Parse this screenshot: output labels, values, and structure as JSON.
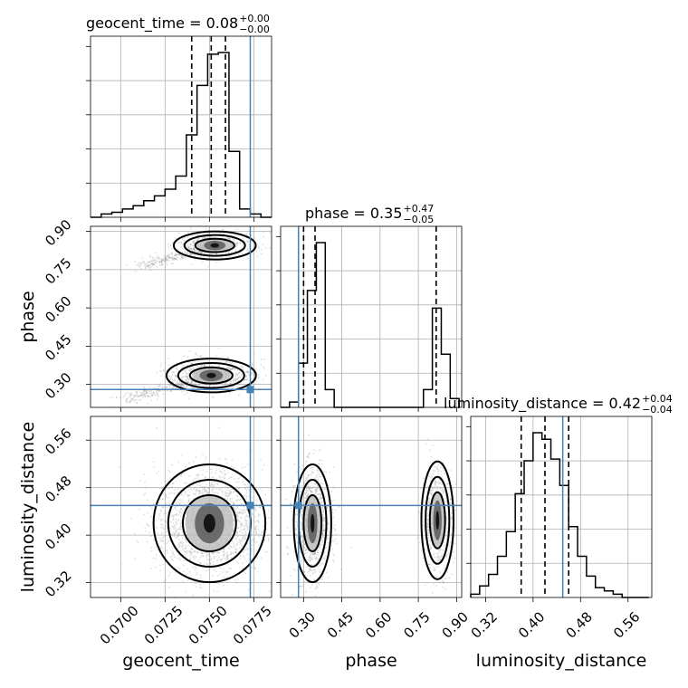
{
  "colors": {
    "truth": "#4682b4",
    "hist": "#000000",
    "points": "#808080",
    "grid": "#b0b0b0"
  },
  "chart_data": {
    "type": "corner",
    "parameters": [
      "geocent_time",
      "phase",
      "luminosity_distance"
    ],
    "truths": {
      "geocent_time": 0.0773,
      "phase": 0.28,
      "luminosity_distance": 0.45
    },
    "titles": {
      "geocent_time": {
        "name": "geocent_time",
        "value": "0.08",
        "plus": "+0.00",
        "minus": "−0.00"
      },
      "phase": {
        "name": "phase",
        "value": "0.35",
        "plus": "+0.47",
        "minus": "−0.05"
      },
      "luminosity_distance": {
        "name": "luminosity_distance",
        "value": "0.42",
        "plus": "+0.04",
        "minus": "−0.04"
      }
    },
    "axis_labels": {
      "geocent_time": "geocent_time",
      "phase": "phase",
      "luminosity_distance": "luminosity_distance"
    },
    "ranges": {
      "geocent_time": [
        0.0683,
        0.0785
      ],
      "phase": [
        0.21,
        0.92
      ],
      "luminosity_distance": [
        0.295,
        0.6
      ]
    },
    "ticks": {
      "geocent_time": [
        "0.0700",
        "0.0725",
        "0.0750",
        "0.0775"
      ],
      "phase": [
        "0.30",
        "0.45",
        "0.60",
        "0.75",
        "0.90"
      ],
      "luminosity_distance": [
        "0.32",
        "0.40",
        "0.48",
        "0.56"
      ]
    },
    "quantiles": {
      "geocent_time": [
        0.074,
        0.0751,
        0.0759
      ],
      "phase": [
        0.3,
        0.345,
        0.82
      ],
      "luminosity_distance": [
        0.38,
        0.42,
        0.46
      ]
    },
    "histograms": {
      "geocent_time": {
        "bin_edges": [
          0.0683,
          0.0689,
          0.0695,
          0.0701,
          0.0707,
          0.0713,
          0.0719,
          0.0725,
          0.0731,
          0.0737,
          0.0743,
          0.0749,
          0.0755,
          0.0761,
          0.0767,
          0.0773,
          0.0779,
          0.0785
        ],
        "counts": [
          0,
          2,
          3,
          5,
          7,
          10,
          13,
          17,
          25,
          50,
          80,
          99,
          100,
          40,
          5,
          2,
          0
        ]
      },
      "phase": {
        "bin_edges": [
          0.21,
          0.245,
          0.28,
          0.315,
          0.35,
          0.385,
          0.42,
          0.455,
          0.49,
          0.525,
          0.56,
          0.595,
          0.63,
          0.665,
          0.7,
          0.735,
          0.77,
          0.805,
          0.84,
          0.875,
          0.91
        ],
        "counts": [
          0,
          3,
          25,
          66,
          93,
          10,
          0,
          0,
          0,
          0,
          0,
          0,
          0,
          0,
          0,
          0,
          10,
          56,
          30,
          5
        ]
      },
      "luminosity_distance": {
        "bin_edges": [
          0.295,
          0.31,
          0.325,
          0.34,
          0.355,
          0.37,
          0.385,
          0.4,
          0.415,
          0.43,
          0.445,
          0.46,
          0.475,
          0.49,
          0.505,
          0.52,
          0.535,
          0.55,
          0.565,
          0.58,
          0.595
        ],
        "counts": [
          2,
          7,
          14,
          25,
          40,
          63,
          83,
          100,
          96,
          84,
          68,
          43,
          25,
          13,
          6,
          4,
          2,
          0,
          0,
          0
        ]
      }
    },
    "scatter_regions": [
      {
        "x": "geocent_time",
        "y": "phase",
        "clusters": [
          {
            "center": [
              0.0753,
              0.845
            ],
            "sx": 0.0011,
            "sy": 0.025,
            "weight": 0.45,
            "tail": [
              0.071,
              0.76
            ]
          },
          {
            "center": [
              0.0751,
              0.335
            ],
            "sx": 0.0012,
            "sy": 0.03,
            "weight": 0.55,
            "tail": [
              0.0703,
              0.24
            ]
          }
        ]
      },
      {
        "x": "geocent_time",
        "y": "luminosity_distance",
        "clusters": [
          {
            "center": [
              0.075,
              0.42
            ],
            "sx": 0.0015,
            "sy": 0.045,
            "weight": 1.0
          }
        ]
      },
      {
        "x": "phase",
        "y": "luminosity_distance",
        "clusters": [
          {
            "center": [
              0.335,
              0.42
            ],
            "sx": 0.035,
            "sy": 0.045,
            "weight": 0.65
          },
          {
            "center": [
              0.825,
              0.425
            ],
            "sx": 0.03,
            "sy": 0.045,
            "weight": 0.35
          }
        ]
      }
    ]
  }
}
